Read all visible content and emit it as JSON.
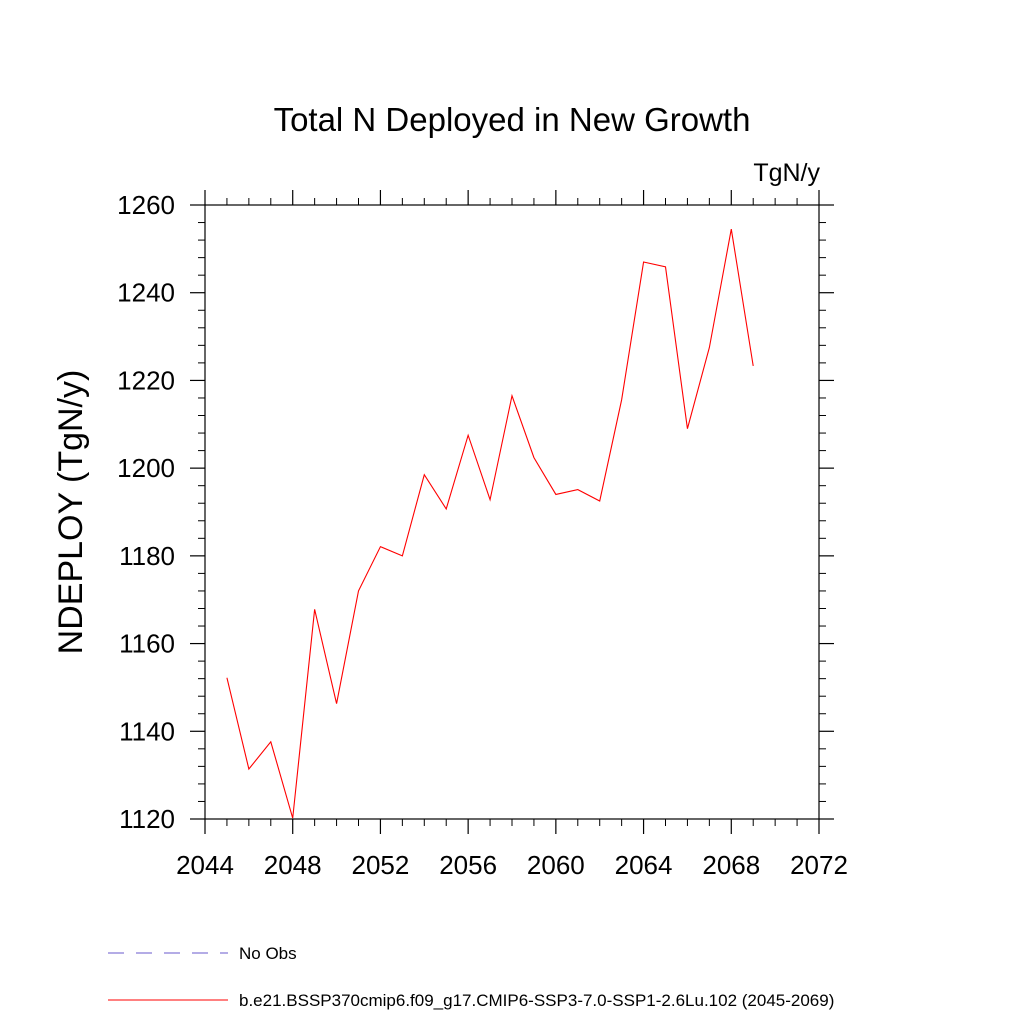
{
  "chart_data": {
    "type": "line",
    "title": "Total N Deployed in New Growth",
    "units_label": "TgN/y",
    "ylabel": "NDEPLOY  (TgN/y)",
    "xlabel": "",
    "xlim": [
      2044,
      2072
    ],
    "ylim": [
      1120,
      1260
    ],
    "x_ticks": [
      2044,
      2048,
      2052,
      2056,
      2060,
      2064,
      2068,
      2072
    ],
    "y_ticks": [
      1120,
      1140,
      1160,
      1180,
      1200,
      1220,
      1240,
      1260
    ],
    "x_minor_step": 1,
    "y_minor_step": 4,
    "grid": false,
    "legend_position": "bottom",
    "series": [
      {
        "name": "b.e21.BSSP370cmip6.f09_g17.CMIP6-SSP3-7.0-SSP1-2.6Lu.102 (2045-2069)",
        "color": "#ff0000",
        "x": [
          2045,
          2046,
          2047,
          2048,
          2049,
          2050,
          2051,
          2052,
          2053,
          2054,
          2055,
          2056,
          2057,
          2058,
          2059,
          2060,
          2061,
          2062,
          2063,
          2064,
          2065,
          2066,
          2067,
          2068,
          2069
        ],
        "values": [
          1152.2,
          1131.4,
          1137.6,
          1120.2,
          1167.8,
          1146.3,
          1172.0,
          1182.1,
          1180.0,
          1198.5,
          1190.7,
          1207.5,
          1192.8,
          1216.5,
          1202.4,
          1194.0,
          1195.1,
          1192.5,
          1215.6,
          1247.0,
          1245.9,
          1209.0,
          1227.5,
          1254.5,
          1223.3
        ]
      }
    ],
    "legend": [
      {
        "label": "No Obs",
        "style": "dashed",
        "color": "#6a5acd"
      },
      {
        "label": "b.e21.BSSP370cmip6.f09_g17.CMIP6-SSP3-7.0-SSP1-2.6Lu.102 (2045-2069)",
        "style": "solid",
        "color": "#ff0000"
      }
    ]
  }
}
